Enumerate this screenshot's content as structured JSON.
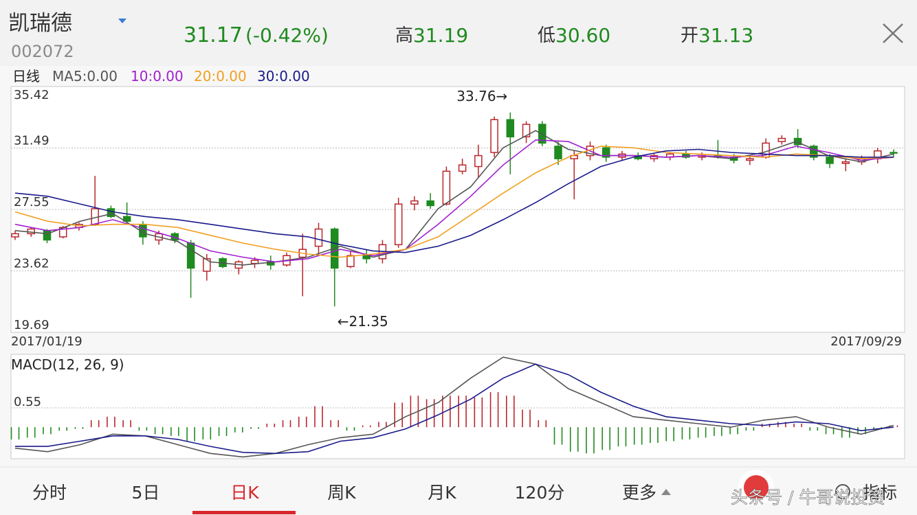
{
  "header": {
    "name": "凯瑞德",
    "code": "002072",
    "price": "31.17",
    "change": "(-0.42%)",
    "quotes": [
      {
        "label": "高",
        "value": "31.19"
      },
      {
        "label": "低",
        "value": "30.60"
      },
      {
        "label": "开",
        "value": "31.13"
      }
    ]
  },
  "ma_legend": [
    {
      "text": "日线",
      "color": "#222222"
    },
    {
      "text": "MA5:0.00",
      "color": "#555555"
    },
    {
      "text": "10:0.00",
      "color": "#a020d0"
    },
    {
      "text": "20:0.00",
      "color": "#f0a020"
    },
    {
      "text": "30:0.00",
      "color": "#1a1a8c"
    }
  ],
  "chart_data": [
    {
      "type": "candlestick",
      "up_color": "#b8262c",
      "down_color": "#1f8a1f",
      "ylim": [
        19.69,
        35.42
      ],
      "yticks": [
        19.69,
        23.62,
        27.55,
        31.49,
        35.42
      ],
      "grid": true,
      "x_labels": [
        "2017/01/19",
        "2017/09/29"
      ],
      "annotations": [
        "33.76→",
        "←21.35"
      ],
      "candles": [
        [
          25.8,
          26.2,
          25.6,
          26.0
        ],
        [
          26.0,
          26.4,
          25.8,
          26.3
        ],
        [
          26.2,
          26.3,
          25.4,
          25.6
        ],
        [
          25.8,
          26.5,
          25.7,
          26.4
        ],
        [
          26.4,
          26.7,
          26.2,
          26.6
        ],
        [
          26.6,
          29.7,
          26.5,
          27.6
        ],
        [
          27.6,
          27.8,
          27.0,
          27.1
        ],
        [
          27.1,
          28.0,
          26.6,
          26.8
        ],
        [
          26.6,
          26.8,
          25.3,
          25.8
        ],
        [
          25.6,
          26.2,
          25.3,
          26.0
        ],
        [
          26.0,
          26.1,
          25.4,
          25.6
        ],
        [
          25.4,
          25.6,
          21.9,
          23.8
        ],
        [
          23.6,
          24.7,
          23.0,
          24.4
        ],
        [
          24.4,
          24.5,
          23.8,
          23.9
        ],
        [
          23.8,
          24.3,
          23.4,
          24.2
        ],
        [
          24.1,
          24.5,
          23.8,
          24.3
        ],
        [
          24.2,
          24.6,
          23.7,
          24.0
        ],
        [
          24.0,
          24.8,
          23.9,
          24.6
        ],
        [
          24.5,
          26.0,
          22.0,
          25.0
        ],
        [
          25.2,
          26.7,
          24.6,
          26.3
        ],
        [
          26.3,
          26.4,
          21.35,
          23.8
        ],
        [
          23.9,
          24.9,
          23.8,
          24.6
        ],
        [
          24.6,
          25.0,
          24.1,
          24.4
        ],
        [
          24.4,
          25.6,
          24.1,
          25.3
        ],
        [
          25.3,
          28.3,
          25.1,
          27.9
        ],
        [
          27.9,
          28.4,
          27.5,
          28.1
        ],
        [
          28.1,
          28.6,
          27.6,
          27.8
        ],
        [
          27.9,
          30.3,
          27.8,
          30.0
        ],
        [
          30.0,
          30.8,
          29.8,
          30.4
        ],
        [
          30.3,
          31.7,
          29.6,
          31.0
        ],
        [
          31.2,
          33.5,
          30.9,
          33.3
        ],
        [
          33.3,
          33.76,
          29.8,
          32.2
        ],
        [
          32.2,
          33.2,
          31.8,
          33.0
        ],
        [
          33.0,
          33.2,
          31.6,
          31.8
        ],
        [
          31.6,
          31.9,
          30.4,
          30.8
        ],
        [
          30.8,
          31.3,
          28.2,
          31.0
        ],
        [
          31.0,
          31.9,
          30.7,
          31.6
        ],
        [
          31.5,
          31.7,
          30.6,
          30.9
        ],
        [
          30.9,
          31.3,
          30.7,
          31.1
        ],
        [
          31.0,
          31.2,
          30.7,
          30.8
        ],
        [
          30.8,
          31.1,
          30.6,
          31.0
        ],
        [
          30.9,
          31.2,
          30.7,
          31.1
        ],
        [
          31.1,
          31.3,
          30.8,
          30.9
        ],
        [
          30.9,
          31.2,
          30.7,
          31.0
        ],
        [
          31.0,
          32.0,
          30.8,
          30.9
        ],
        [
          30.9,
          31.1,
          30.5,
          30.7
        ],
        [
          30.7,
          31.0,
          30.4,
          30.8
        ],
        [
          30.9,
          32.1,
          30.8,
          31.8
        ],
        [
          31.9,
          32.3,
          31.7,
          32.1
        ],
        [
          32.1,
          32.7,
          31.5,
          31.7
        ],
        [
          31.6,
          31.7,
          30.7,
          30.9
        ],
        [
          30.9,
          31.1,
          30.2,
          30.5
        ],
        [
          30.5,
          30.8,
          30.0,
          30.6
        ],
        [
          30.6,
          31.0,
          30.4,
          30.8
        ],
        [
          30.8,
          31.5,
          30.5,
          31.3
        ],
        [
          31.2,
          31.4,
          30.9,
          31.17
        ]
      ],
      "series": [
        {
          "color": "#555555",
          "values": [
            26.2,
            26.0,
            26.8,
            27.3,
            26.0,
            25.5,
            24.2,
            24.0,
            24.2,
            24.5,
            25.2,
            24.5,
            25.0,
            27.6,
            29.0,
            31.5,
            32.6,
            31.4,
            31.0,
            31.0,
            30.9,
            31.0,
            30.8,
            31.2,
            31.9,
            31.0,
            30.6,
            31.1
          ]
        },
        {
          "color": "#a020d0",
          "values": [
            26.6,
            26.2,
            26.4,
            26.9,
            26.3,
            25.7,
            24.9,
            24.5,
            24.2,
            24.4,
            25.0,
            24.6,
            25.0,
            26.6,
            28.4,
            30.4,
            32.0,
            31.9,
            31.0,
            31.0,
            30.9,
            31.0,
            30.9,
            31.0,
            31.6,
            31.2,
            30.7,
            30.9
          ]
        },
        {
          "color": "#f0a020",
          "values": [
            27.4,
            26.8,
            26.5,
            26.6,
            26.6,
            26.4,
            25.9,
            25.4,
            25.0,
            24.7,
            24.5,
            24.7,
            25.0,
            25.8,
            27.2,
            28.6,
            29.9,
            30.9,
            31.6,
            31.5,
            31.2,
            31.1,
            31.0,
            30.9,
            31.1,
            31.0,
            30.8,
            30.9
          ]
        },
        {
          "color": "#1a1a8c",
          "values": [
            28.6,
            28.4,
            27.9,
            27.4,
            27.1,
            26.9,
            26.6,
            26.3,
            26.0,
            25.8,
            25.3,
            24.9,
            24.8,
            25.2,
            25.9,
            26.9,
            28.0,
            29.2,
            30.3,
            30.9,
            31.3,
            31.4,
            31.2,
            31.1,
            31.0,
            31.0,
            30.9,
            30.9
          ]
        }
      ]
    },
    {
      "type": "macd",
      "title": "MACD(12, 26, 9)",
      "up_color": "#b8262c",
      "down_color": "#1f8a1f",
      "ylim": [
        -0.9,
        2.08
      ],
      "yticks": [
        0.55
      ],
      "grid": true,
      "histogram": [
        -0.35,
        -0.3,
        -0.2,
        -0.1,
        -0.05,
        0.2,
        0.3,
        0.2,
        -0.1,
        -0.2,
        -0.25,
        -0.4,
        -0.35,
        -0.25,
        -0.15,
        -0.05,
        0.1,
        0.2,
        0.3,
        0.6,
        0.2,
        -0.1,
        0.05,
        0.15,
        0.7,
        0.9,
        0.8,
        0.9,
        0.9,
        0.85,
        1.0,
        0.9,
        0.5,
        0.2,
        -0.5,
        -0.7,
        -0.75,
        -0.65,
        -0.55,
        -0.5,
        -0.45,
        -0.4,
        -0.35,
        -0.3,
        -0.25,
        -0.2,
        -0.1,
        0.1,
        0.15,
        0.1,
        -0.1,
        -0.2,
        -0.3,
        -0.2,
        -0.05,
        0.05
      ],
      "series": [
        {
          "color": "#555555",
          "values": [
            -0.6,
            -0.7,
            -0.5,
            -0.2,
            -0.25,
            -0.5,
            -0.75,
            -0.85,
            -0.75,
            -0.5,
            -0.3,
            -0.2,
            0.3,
            0.7,
            1.4,
            2.0,
            1.8,
            1.1,
            0.7,
            0.3,
            0.2,
            0.1,
            0.0,
            0.2,
            0.3,
            0.0,
            -0.2,
            0.05
          ]
        },
        {
          "color": "#1a1a8c",
          "values": [
            -0.55,
            -0.55,
            -0.4,
            -0.25,
            -0.25,
            -0.35,
            -0.55,
            -0.72,
            -0.75,
            -0.7,
            -0.4,
            -0.3,
            -0.05,
            0.35,
            0.8,
            1.4,
            1.8,
            1.5,
            1.0,
            0.6,
            0.3,
            0.2,
            0.1,
            0.05,
            0.15,
            0.1,
            -0.1,
            0.0
          ]
        }
      ]
    }
  ],
  "tabs": [
    "分时",
    "5日",
    "日K",
    "周K",
    "月K",
    "120分",
    "更多",
    "指标"
  ],
  "watermark": "头条号 / 牛哥说投资"
}
